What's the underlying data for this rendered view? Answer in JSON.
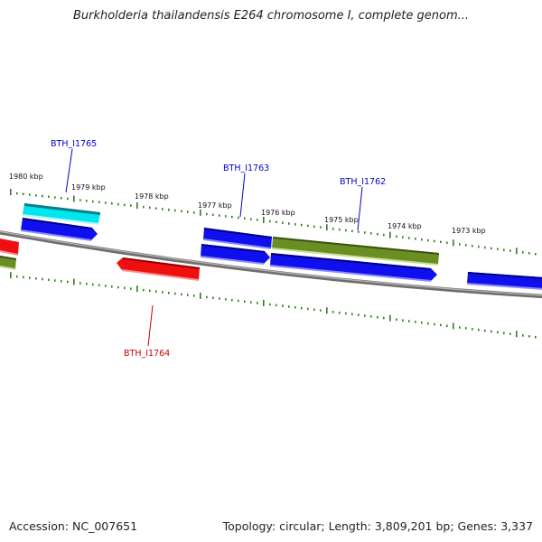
{
  "title": "Burkholderia thailandensis E264 chromosome I, complete genom...",
  "footer": {
    "accession": "Accession: NC_007651",
    "summary": "Topology: circular; Length: 3,809,201 bp; Genes: 3,337"
  },
  "colors": {
    "backbone": "#808080",
    "tick": "#2e7d1a",
    "forward_strand_gene": "#0000ee",
    "reverse_strand_gene": "#ee0000",
    "rna_gene": "#6b8e23",
    "highlighted_gene": "#00e5ee",
    "label_forward": "#0000cc",
    "label_reverse": "#cc0000"
  },
  "scale_labels": [
    "1980 kbp",
    "1979 kbp",
    "1978 kbp",
    "1977 kbp",
    "1976 kbp",
    "1975 kbp",
    "1974 kbp",
    "1973 kbp"
  ],
  "gene_labels": [
    {
      "text": "BTH_I1765",
      "strand": "forward"
    },
    {
      "text": "BTH_I1763",
      "strand": "forward"
    },
    {
      "text": "BTH_I1762",
      "strand": "forward"
    },
    {
      "text": "BTH_I1764",
      "strand": "reverse"
    }
  ]
}
